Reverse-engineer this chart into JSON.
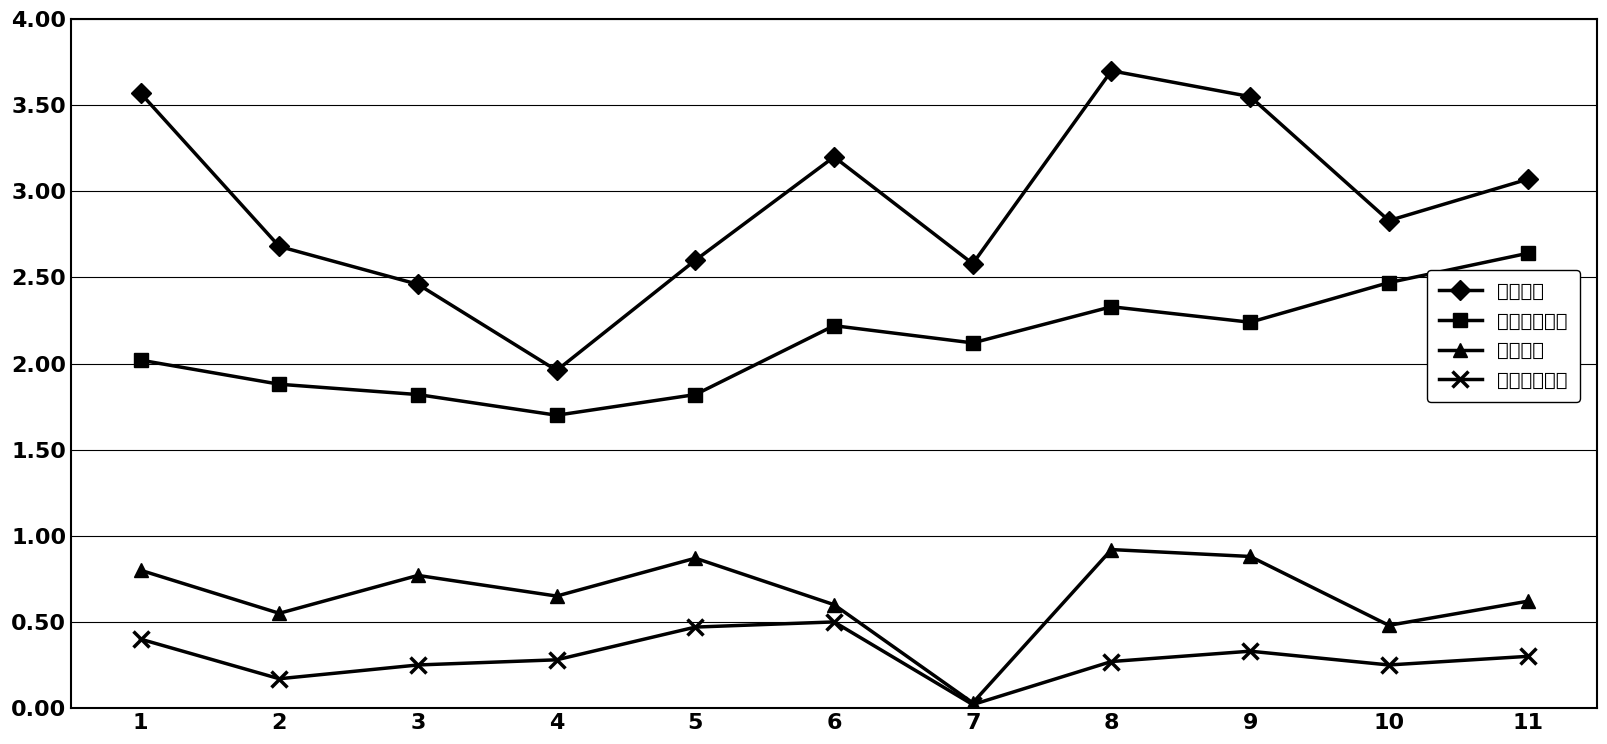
{
  "x": [
    1,
    2,
    3,
    4,
    5,
    6,
    7,
    8,
    9,
    10,
    11
  ],
  "yuan_shui_zong_dan": [
    3.57,
    2.68,
    2.46,
    1.96,
    2.6,
    3.2,
    2.58,
    3.7,
    3.55,
    2.83,
    3.07
  ],
  "yuan_shui_xiao_suan_yan_dan": [
    2.02,
    1.88,
    1.82,
    1.7,
    1.82,
    2.22,
    2.12,
    2.33,
    2.24,
    2.47,
    2.64
  ],
  "chu_shui_zong_dan": [
    0.8,
    0.55,
    0.77,
    0.65,
    0.87,
    0.6,
    0.03,
    0.92,
    0.88,
    0.48,
    0.62
  ],
  "chu_shui_xiao_suan_yan_dan": [
    0.4,
    0.17,
    0.25,
    0.28,
    0.47,
    0.5,
    0.02,
    0.27,
    0.33,
    0.25,
    0.3
  ],
  "legend_labels": [
    "原水总氮",
    "原水确酸盐氮",
    "出水总氮",
    "出水确酸盐氮"
  ],
  "ylim": [
    0.0,
    4.0
  ],
  "yticks": [
    0.0,
    0.5,
    1.0,
    1.5,
    2.0,
    2.5,
    3.0,
    3.5,
    4.0
  ],
  "line_color": "#000000",
  "background_color": "#ffffff",
  "grid_color": "#000000",
  "marker_size": 10,
  "linewidth": 2.5,
  "tick_fontsize": 16,
  "legend_fontsize": 14
}
